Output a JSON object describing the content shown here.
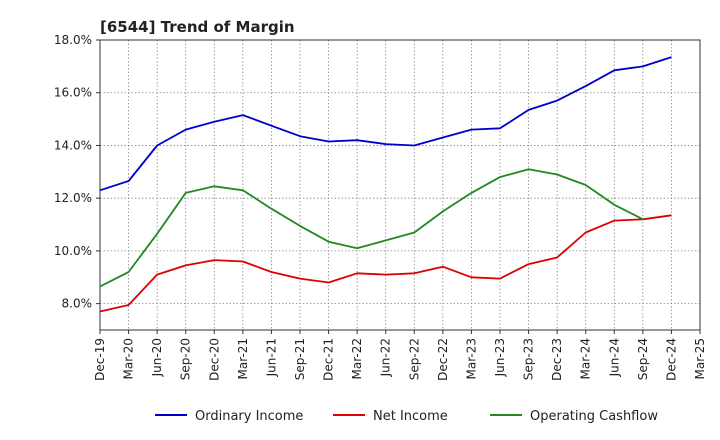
{
  "chart_data": {
    "type": "line",
    "title": "[6544]  Trend of Margin",
    "x": [
      "Dec-19",
      "Mar-20",
      "Jun-20",
      "Sep-20",
      "Dec-20",
      "Mar-21",
      "Jun-21",
      "Sep-21",
      "Dec-21",
      "Mar-22",
      "Jun-22",
      "Sep-22",
      "Dec-22",
      "Mar-23",
      "Jun-23",
      "Sep-23",
      "Dec-23",
      "Mar-24",
      "Jun-24",
      "Sep-24",
      "Dec-24",
      "Mar-25"
    ],
    "x_tick_labels": [
      "Dec-19",
      "Mar-20",
      "Jun-20",
      "Sep-20",
      "Dec-20",
      "Mar-21",
      "Jun-21",
      "Sep-21",
      "Dec-21",
      "Mar-22",
      "Jun-22",
      "Sep-22",
      "Dec-22",
      "Mar-23",
      "Jun-23",
      "Sep-23",
      "Dec-23",
      "Mar-24",
      "Jun-24",
      "Sep-24",
      "Dec-24",
      "Mar-25"
    ],
    "y_ticks": [
      8.0,
      10.0,
      12.0,
      14.0,
      16.0,
      18.0
    ],
    "y_tick_labels": [
      "8.0%",
      "10.0%",
      "12.0%",
      "14.0%",
      "16.0%",
      "18.0%"
    ],
    "ylim": [
      7.0,
      18.0
    ],
    "grid": true,
    "legend_placement": "bottom",
    "series": [
      {
        "name": "Ordinary Income",
        "color": "#0000cc",
        "values": [
          12.3,
          12.65,
          14.0,
          14.6,
          14.9,
          15.15,
          14.75,
          14.35,
          14.15,
          14.2,
          14.05,
          14.0,
          14.3,
          14.6,
          14.65,
          15.35,
          15.7,
          16.25,
          16.85,
          17.0,
          17.35,
          null
        ]
      },
      {
        "name": "Net Income",
        "color": "#dd0000",
        "values": [
          7.7,
          7.95,
          9.1,
          9.45,
          9.65,
          9.6,
          9.2,
          8.95,
          8.8,
          9.15,
          9.1,
          9.15,
          9.4,
          9.0,
          8.95,
          9.5,
          9.75,
          10.7,
          11.15,
          11.2,
          11.35,
          null
        ]
      },
      {
        "name": "Operating Cashflow",
        "color": "#228822",
        "values": [
          8.65,
          9.2,
          10.65,
          12.2,
          12.45,
          12.3,
          11.6,
          10.95,
          10.35,
          10.1,
          10.4,
          10.7,
          11.5,
          12.2,
          12.8,
          13.1,
          12.9,
          12.5,
          11.75,
          11.2,
          null,
          null
        ]
      }
    ]
  }
}
